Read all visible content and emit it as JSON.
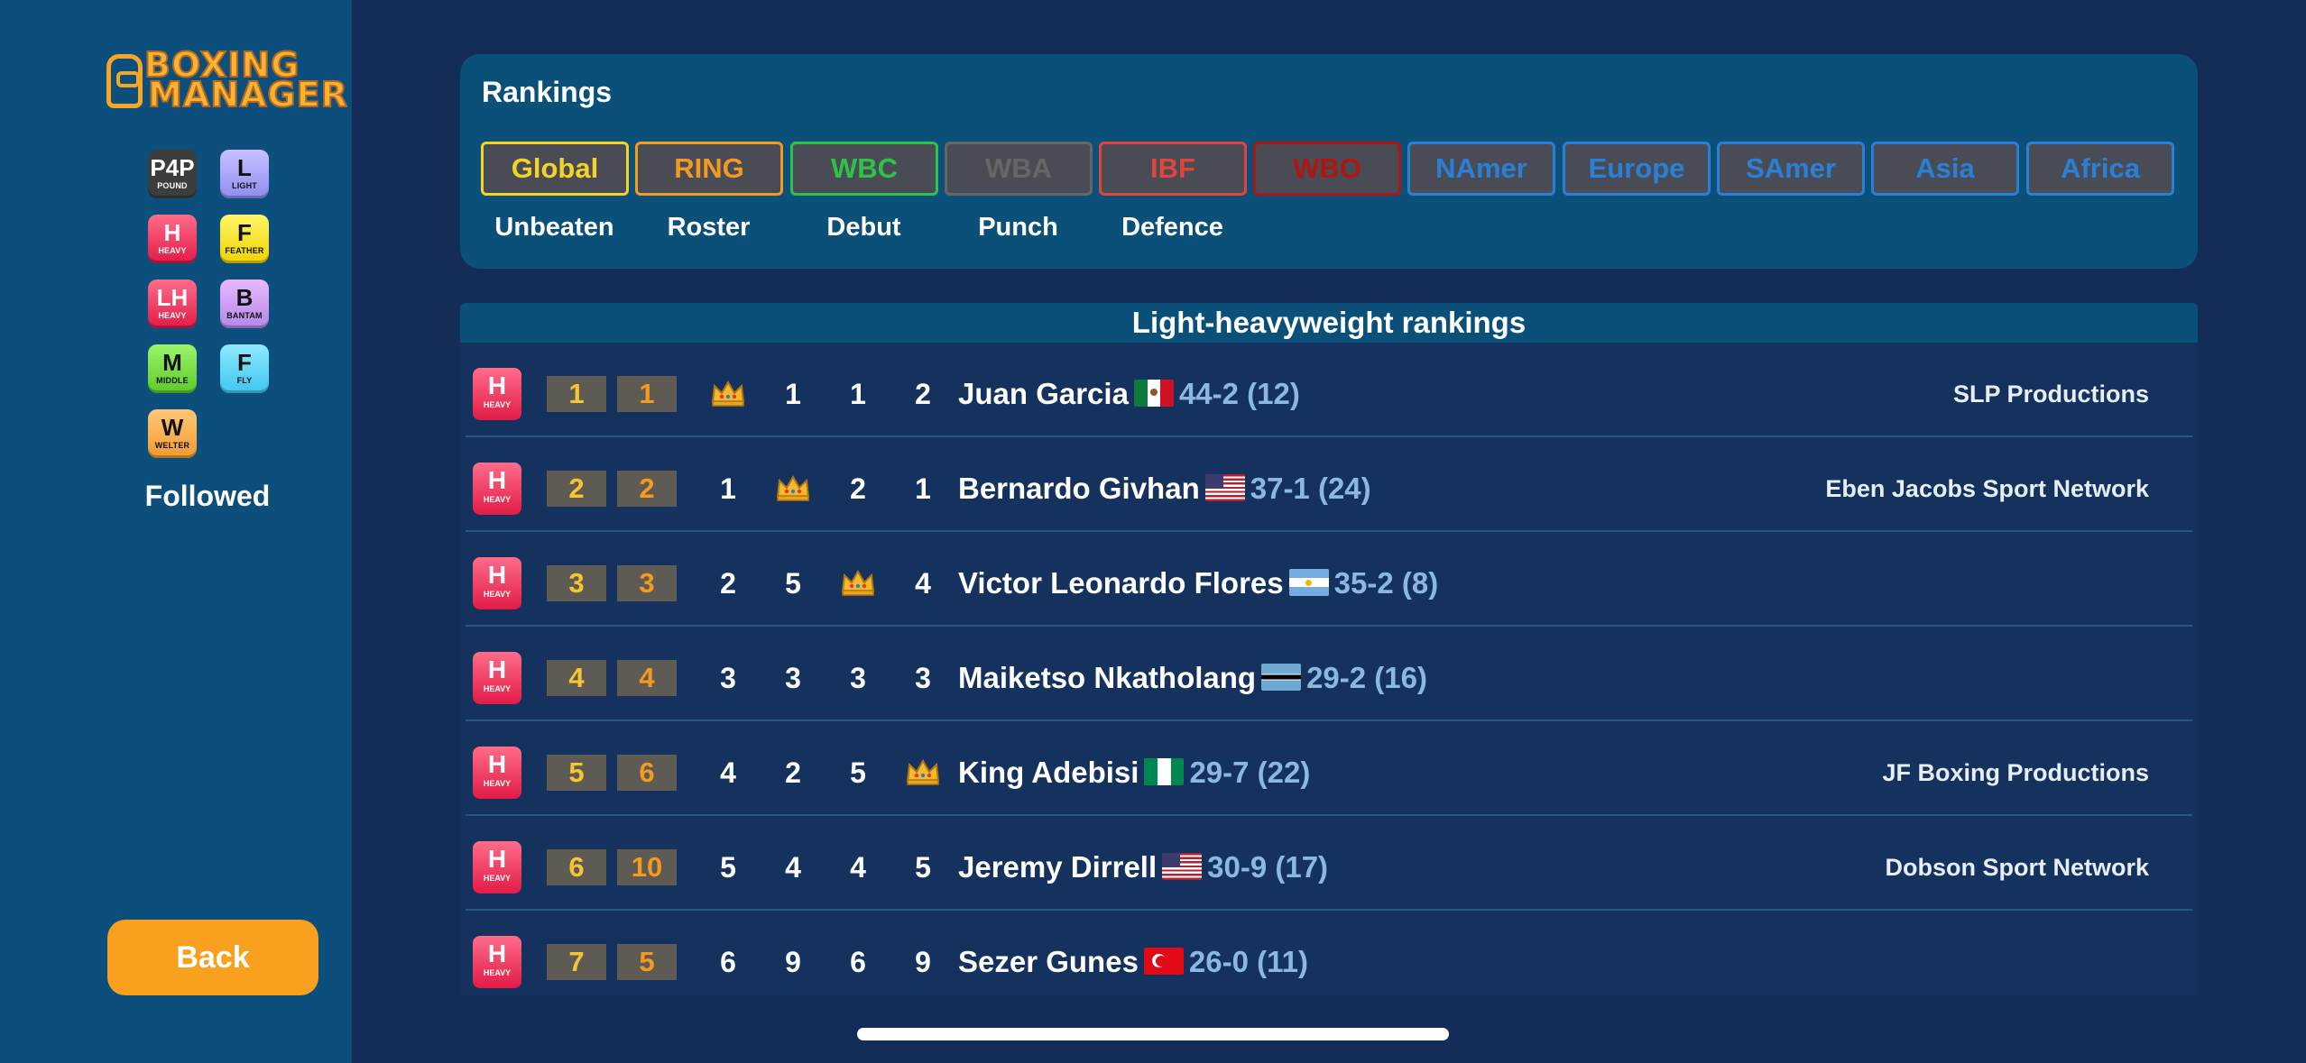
{
  "app": {
    "logo": "BOXING MANAGER",
    "logo_line1": "BOXING",
    "logo_line2": "MANAGER"
  },
  "sidebar": {
    "weight_classes": [
      {
        "abbr": "P4P",
        "label": "POUND",
        "color": "#3d3d3d"
      },
      {
        "abbr": "L",
        "label": "LIGHT",
        "color": "#a9a6fa"
      },
      {
        "abbr": "H",
        "label": "HEAVY",
        "color": "#f03a5f"
      },
      {
        "abbr": "F",
        "label": "FEATHER",
        "color": "#f7e21a"
      },
      {
        "abbr": "LH",
        "label": "HEAVY",
        "color": "#f03a5f"
      },
      {
        "abbr": "B",
        "label": "BANTAM",
        "color": "#c9a0f2"
      },
      {
        "abbr": "M",
        "label": "MIDDLE",
        "color": "#7ee04a"
      },
      {
        "abbr": "F",
        "label": "FLY",
        "color": "#5cd5f7"
      },
      {
        "abbr": "W",
        "label": "WELTER",
        "color": "#f9b04f"
      }
    ],
    "followed_label": "Followed",
    "back_label": "Back"
  },
  "rankings_panel": {
    "title": "Rankings",
    "tabs": [
      {
        "label": "Global",
        "color": "#f5d324"
      },
      {
        "label": "RING",
        "color": "#f39a1f"
      },
      {
        "label": "WBC",
        "color": "#2ec24a"
      },
      {
        "label": "WBA",
        "color": "#666666"
      },
      {
        "label": "IBF",
        "color": "#e0443a"
      },
      {
        "label": "WBO",
        "color": "#b0150f"
      },
      {
        "label": "NAmer",
        "color": "#2a7fd6"
      },
      {
        "label": "Europe",
        "color": "#2a7fd6"
      },
      {
        "label": "SAmer",
        "color": "#2a7fd6"
      },
      {
        "label": "Asia",
        "color": "#2a7fd6"
      },
      {
        "label": "Africa",
        "color": "#2a7fd6"
      }
    ],
    "sub_tabs": [
      "Unbeaten",
      "Roster",
      "Debut",
      "Punch",
      "Defence"
    ]
  },
  "table": {
    "header": "Light-heavyweight rankings",
    "rows": [
      {
        "badge": "H",
        "badge_label": "HEAVY",
        "rank_a": "1",
        "rank_b": "1",
        "wbc": "crown",
        "wba": "1",
        "ibf": "1",
        "wbo": "2",
        "name": "Juan Garcia",
        "flag": "mexico",
        "record": "44-2 (12)",
        "promoter": "SLP Productions"
      },
      {
        "badge": "H",
        "badge_label": "HEAVY",
        "rank_a": "2",
        "rank_b": "2",
        "wbc": "1",
        "wba": "crown",
        "ibf": "2",
        "wbo": "1",
        "name": "Bernardo Givhan",
        "flag": "usa",
        "record": "37-1 (24)",
        "promoter": "Eben Jacobs Sport Network"
      },
      {
        "badge": "H",
        "badge_label": "HEAVY",
        "rank_a": "3",
        "rank_b": "3",
        "wbc": "2",
        "wba": "5",
        "ibf": "crown",
        "wbo": "4",
        "name": "Victor Leonardo Flores",
        "flag": "argentina",
        "record": "35-2 (8)",
        "promoter": ""
      },
      {
        "badge": "H",
        "badge_label": "HEAVY",
        "rank_a": "4",
        "rank_b": "4",
        "wbc": "3",
        "wba": "3",
        "ibf": "3",
        "wbo": "3",
        "name": "Maiketso Nkatholang",
        "flag": "botswana",
        "record": "29-2 (16)",
        "promoter": ""
      },
      {
        "badge": "H",
        "badge_label": "HEAVY",
        "rank_a": "5",
        "rank_b": "6",
        "wbc": "4",
        "wba": "2",
        "ibf": "5",
        "wbo": "crown",
        "name": "King Adebisi",
        "flag": "nigeria",
        "record": "29-7 (22)",
        "promoter": "JF Boxing Productions"
      },
      {
        "badge": "H",
        "badge_label": "HEAVY",
        "rank_a": "6",
        "rank_b": "10",
        "wbc": "5",
        "wba": "4",
        "ibf": "4",
        "wbo": "5",
        "name": "Jeremy Dirrell",
        "flag": "usa",
        "record": "30-9 (17)",
        "promoter": "Dobson Sport Network"
      },
      {
        "badge": "H",
        "badge_label": "HEAVY",
        "rank_a": "7",
        "rank_b": "5",
        "wbc": "6",
        "wba": "9",
        "ibf": "6",
        "wbo": "9",
        "name": "Sezer Gunes",
        "flag": "turkey",
        "record": "26-0 (11)",
        "promoter": ""
      }
    ]
  }
}
